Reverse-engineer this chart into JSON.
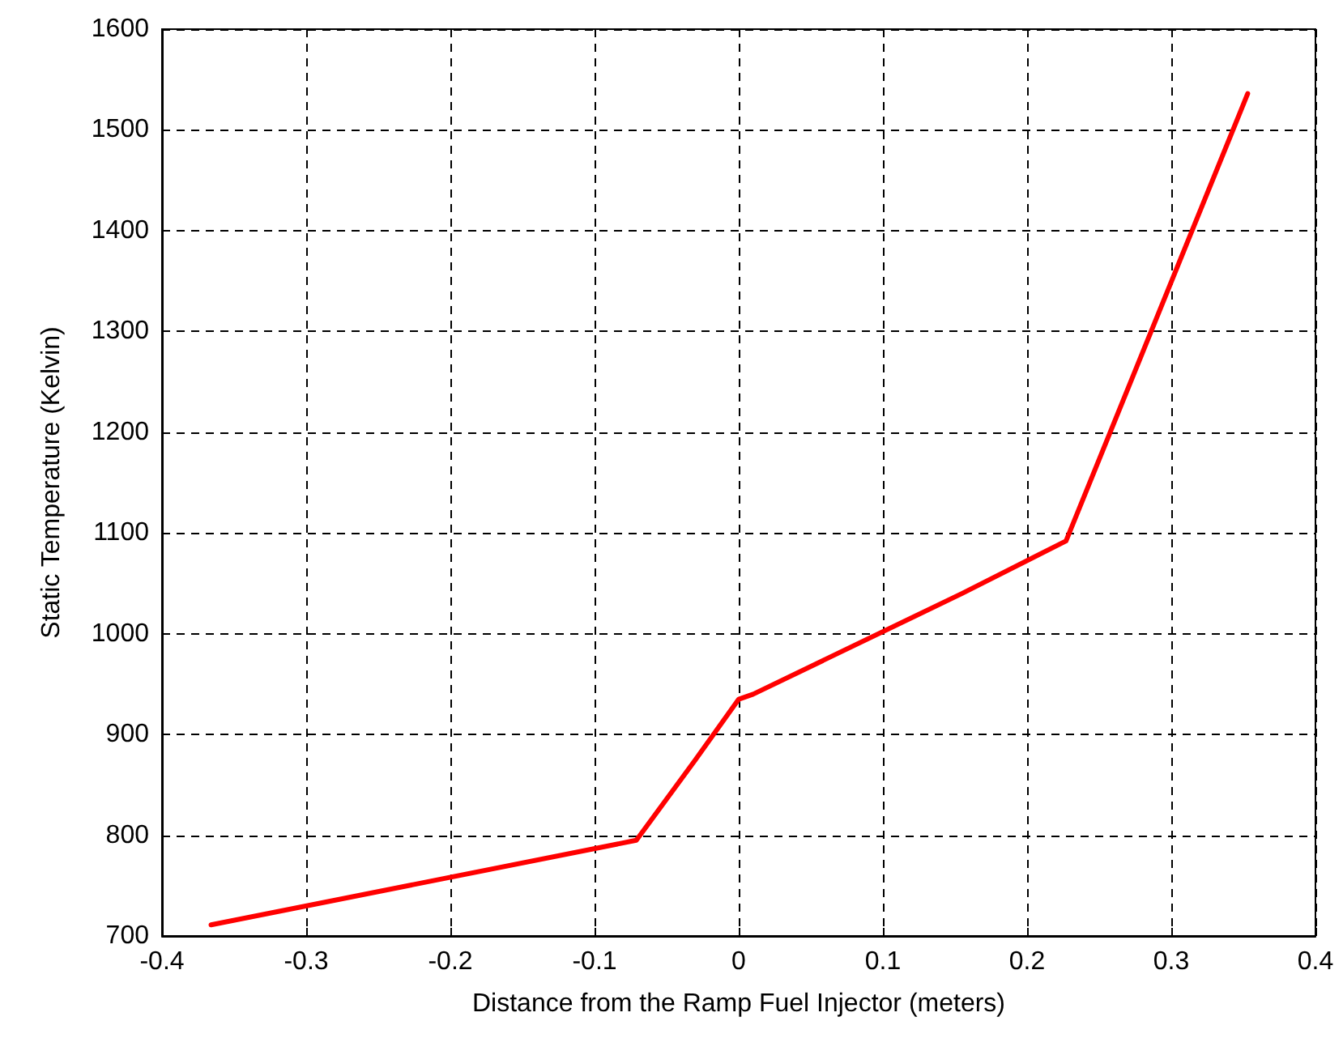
{
  "chart_data": {
    "type": "line",
    "xlabel": "Distance from the Ramp Fuel Injector (meters)",
    "ylabel": "Static Temperature (Kelvin)",
    "series": [
      {
        "color": "#ff0000",
        "x": [
          -0.366,
          -0.071,
          -0.03,
          0,
          0.01,
          0.155,
          0.227,
          0.353
        ],
        "values": [
          711,
          795,
          875,
          935,
          940,
          1040,
          1092,
          1536
        ]
      }
    ],
    "xlim": [
      -0.4,
      0.4
    ],
    "xticks": [
      -0.4,
      -0.3,
      -0.2,
      -0.1,
      0,
      0.1,
      0.2,
      0.3,
      0.4
    ],
    "ylim": [
      700,
      1600
    ],
    "yticks": [
      700,
      800,
      900,
      1000,
      1100,
      1200,
      1300,
      1400,
      1500,
      1600
    ],
    "grid": true,
    "marker": "none",
    "line_style": "solid"
  }
}
